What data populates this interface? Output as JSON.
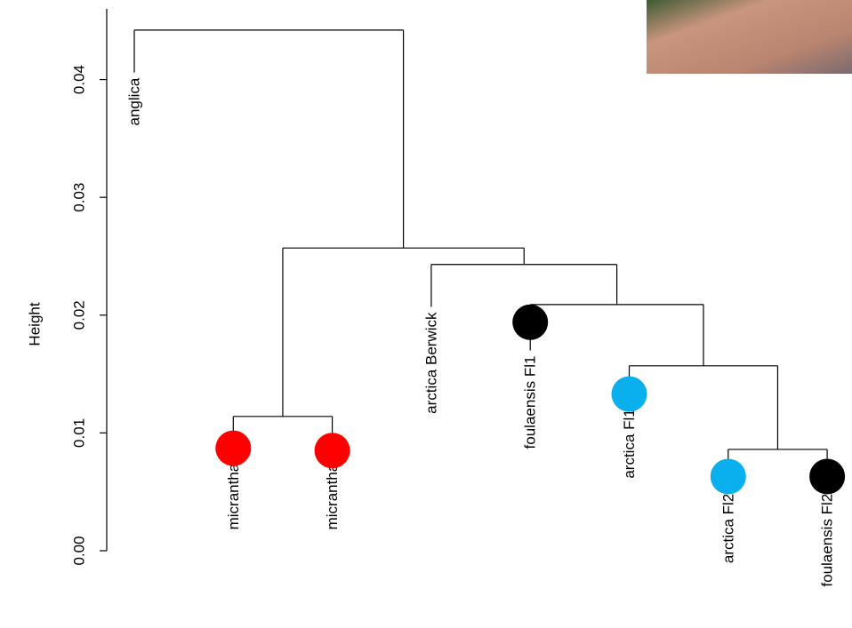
{
  "chart_data": {
    "type": "dendrogram",
    "y_label": "Height",
    "ylim": [
      0,
      0.046
    ],
    "yticks": [
      {
        "value": 0,
        "label": "0.00"
      },
      {
        "value": 0.01,
        "label": "0.01"
      },
      {
        "value": 0.02,
        "label": "0.02"
      },
      {
        "value": 0.03,
        "label": "0.03"
      },
      {
        "value": 0.04,
        "label": "0.04"
      }
    ],
    "tree": {
      "height": 0.0442,
      "children": [
        {
          "label": "anglica",
          "height": 0.0406
        },
        {
          "height": 0.0257,
          "children": [
            {
              "height": 0.0114,
              "children": [
                {
                  "label": "micrantha Fl1",
                  "height": 0.01,
                  "marker": 0.0087,
                  "color": "#ff0000"
                },
                {
                  "label": "micrantha Fl2",
                  "height": 0.01,
                  "marker": 0.0085,
                  "color": "#ff0000"
                }
              ]
            },
            {
              "height": 0.0243,
              "children": [
                {
                  "label": "arctica Berwick",
                  "height": 0.0207
                },
                {
                  "height": 0.0209,
                  "children": [
                    {
                      "label": "foulaensis Fl1",
                      "height": 0.017,
                      "marker": 0.0194,
                      "color": "#000000"
                    },
                    {
                      "height": 0.0157,
                      "children": [
                        {
                          "label": "arctica Fl1",
                          "height": 0.0125,
                          "marker": 0.0133,
                          "color": "#0ab0ee"
                        },
                        {
                          "height": 0.0086,
                          "children": [
                            {
                              "label": "arctica Fl2",
                              "height": 0.0053,
                              "marker": 0.0063,
                              "color": "#0ab0ee"
                            },
                            {
                              "label": "foulaensis Fl2",
                              "height": 0.0053,
                              "marker": 0.0063,
                              "color": "#000000"
                            }
                          ]
                        }
                      ]
                    }
                  ]
                }
              ]
            }
          ]
        }
      ]
    }
  }
}
